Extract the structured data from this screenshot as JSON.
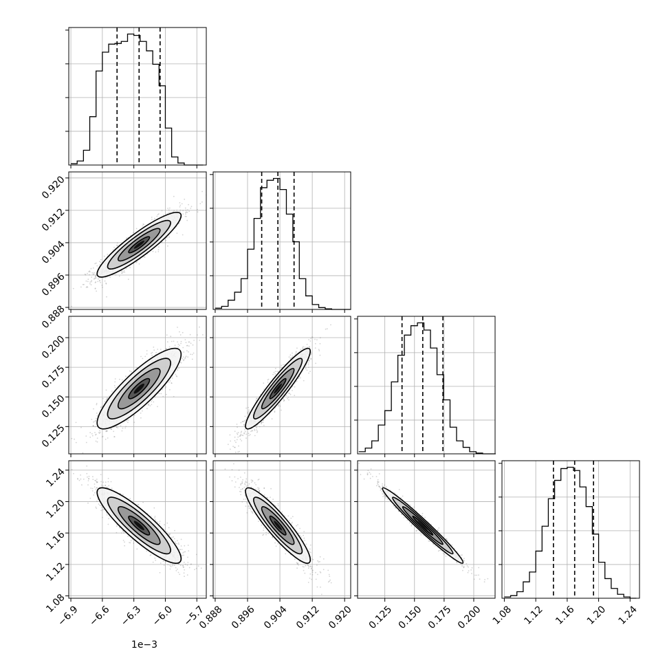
{
  "chart_data": {
    "type": "corner",
    "parameters": [
      {
        "ticks": [
          -0.0069,
          -0.0066,
          -0.0063,
          -0.006,
          -0.0057
        ],
        "tick_labels": [
          "−6.9",
          "−6.6",
          "−6.3",
          "−6.0",
          "−5.7"
        ],
        "range": [
          -0.00692,
          -0.00561
        ],
        "offset_text": "1e−3"
      },
      {
        "ticks": [
          0.888,
          0.896,
          0.904,
          0.912,
          0.92
        ],
        "tick_labels": [
          "0.888",
          "0.896",
          "0.904",
          "0.912",
          "0.920"
        ],
        "range": [
          0.8875,
          0.9215
        ],
        "offset_text": ""
      },
      {
        "ticks": [
          0.125,
          0.15,
          0.175,
          0.2
        ],
        "tick_labels": [
          "0.125",
          "0.150",
          "0.175",
          "0.200"
        ],
        "range": [
          0.102,
          0.218
        ],
        "offset_text": ""
      },
      {
        "ticks": [
          1.08,
          1.12,
          1.16,
          1.2,
          1.24
        ],
        "tick_labels": [
          "1.08",
          "1.12",
          "1.16",
          "1.20",
          "1.24"
        ],
        "range": [
          1.077,
          1.252
        ],
        "offset_text": ""
      }
    ],
    "quantiles": [
      [
        -0.00646,
        -0.00625,
        -0.00605
      ],
      [
        0.8995,
        0.9035,
        0.9075
      ],
      [
        0.1395,
        0.157,
        0.174
      ],
      [
        1.1425,
        1.1695,
        1.1935
      ]
    ],
    "histograms": [
      {
        "bin_edges": [
          -0.0069,
          -0.00684,
          -0.00678,
          -0.00672,
          -0.00666,
          -0.0066,
          -0.00654,
          -0.00648,
          -0.00642,
          -0.00636,
          -0.0063,
          -0.00624,
          -0.00618,
          -0.00612,
          -0.00606,
          -0.006,
          -0.00594,
          -0.00588,
          -0.00582,
          -0.00576,
          -0.0057,
          -0.00564
        ],
        "counts": [
          2,
          6,
          22,
          72,
          140,
          168,
          180,
          181,
          184,
          195,
          193,
          184,
          170,
          150,
          118,
          55,
          12,
          3,
          0,
          0,
          0
        ]
      },
      {
        "bin_edges": [
          0.888,
          0.8896,
          0.8912,
          0.8928,
          0.8944,
          0.896,
          0.8976,
          0.8992,
          0.9008,
          0.9024,
          0.904,
          0.9056,
          0.9072,
          0.9088,
          0.9104,
          0.912,
          0.9136,
          0.9152,
          0.9168,
          0.9184,
          0.92,
          0.9216
        ],
        "counts": [
          2,
          5,
          15,
          28,
          50,
          98,
          148,
          198,
          210,
          213,
          195,
          155,
          110,
          50,
          22,
          8,
          3,
          1,
          0,
          0,
          0
        ]
      },
      {
        "bin_edges": [
          0.103,
          0.1085,
          0.114,
          0.1195,
          0.125,
          0.1305,
          0.136,
          0.1415,
          0.147,
          0.1525,
          0.158,
          0.1635,
          0.169,
          0.1745,
          0.18,
          0.1855,
          0.191,
          0.1965,
          0.202,
          0.2075,
          0.213,
          0.2185
        ],
        "counts": [
          3,
          8,
          18,
          40,
          60,
          100,
          137,
          165,
          178,
          182,
          172,
          147,
          110,
          75,
          37,
          18,
          9,
          3,
          1,
          0,
          0
        ]
      },
      {
        "bin_edges": [
          1.08,
          1.088,
          1.096,
          1.104,
          1.112,
          1.12,
          1.128,
          1.136,
          1.144,
          1.152,
          1.16,
          1.168,
          1.176,
          1.184,
          1.192,
          1.2,
          1.208,
          1.216,
          1.224,
          1.232,
          1.24,
          1.248
        ],
        "counts": [
          2,
          4,
          10,
          25,
          40,
          72,
          110,
          152,
          180,
          198,
          200,
          195,
          170,
          140,
          98,
          55,
          30,
          15,
          6,
          2,
          0
        ]
      }
    ],
    "pairs": [
      {
        "x_param": 0,
        "y_param": 1,
        "center": [
          -0.00625,
          0.9035
        ],
        "sigma": [
          0.0002,
          0.004
        ],
        "rho": 0.9
      },
      {
        "x_param": 0,
        "y_param": 2,
        "center": [
          -0.00625,
          0.157
        ],
        "sigma": [
          0.0002,
          0.017
        ],
        "rho": 0.85
      },
      {
        "x_param": 1,
        "y_param": 2,
        "center": [
          0.9035,
          0.157
        ],
        "sigma": [
          0.004,
          0.017
        ],
        "rho": 0.93
      },
      {
        "x_param": 0,
        "y_param": 3,
        "center": [
          -0.00625,
          1.1695
        ],
        "sigma": [
          0.0002,
          0.024
        ],
        "rho": -0.88
      },
      {
        "x_param": 1,
        "y_param": 3,
        "center": [
          0.9035,
          1.1695
        ],
        "sigma": [
          0.004,
          0.024
        ],
        "rho": -0.91
      },
      {
        "x_param": 2,
        "y_param": 3,
        "center": [
          0.157,
          1.1695
        ],
        "sigma": [
          0.017,
          0.024
        ],
        "rho": -0.98
      }
    ],
    "contour_levels_sigma": [
      0.5,
      1.0,
      1.5,
      2.0
    ],
    "grid": true,
    "colors": {
      "line": "#000000",
      "grid": "#b0b0b0",
      "scatter": "#808080",
      "background": "#ffffff"
    }
  }
}
